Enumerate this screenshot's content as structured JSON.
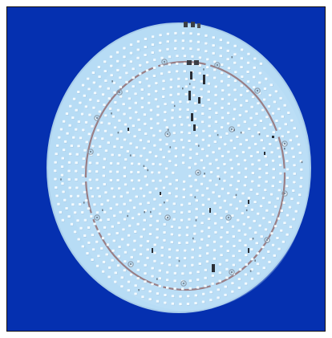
{
  "photo": {
    "subject": "led-panel-board",
    "colors": {
      "background": "#0530b0",
      "board": "#b7dcf5",
      "board_edge": "#a9cdea",
      "led": "#f4fbff",
      "led_shadow": "#8fb3cf",
      "ring_trace": "#9a7f86",
      "component_dark": "#2b2f36",
      "mount_hole": "#8f9fae"
    }
  }
}
